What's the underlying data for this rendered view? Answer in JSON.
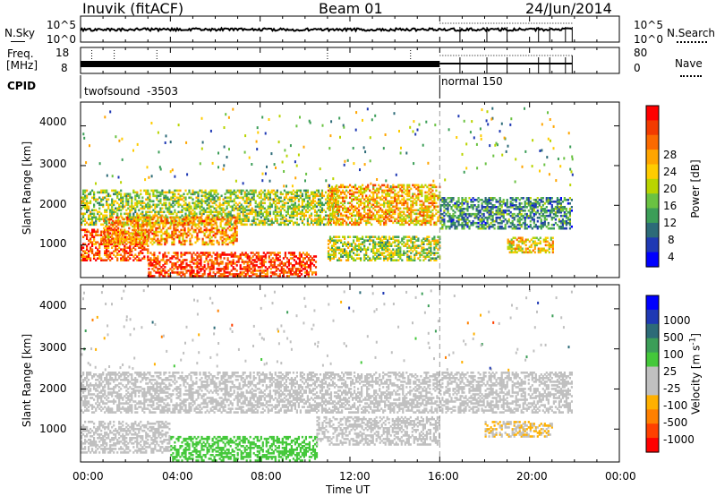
{
  "header": {
    "station": "Inuvik (fitACF)",
    "beam": "Beam 01",
    "date": "24/Jun/2014"
  },
  "noise_panel": {
    "left_label": "N.Sky",
    "left_ticks": [
      "10^5",
      "10^0"
    ],
    "right_ticks": [
      "10^5",
      "10^0"
    ],
    "right_label": "N.Search",
    "right_line": "dotted"
  },
  "freq_panel": {
    "left_label_1": "Freq.",
    "left_label_2": "[MHz]",
    "left_ticks": [
      "18",
      "8"
    ],
    "right_ticks": [
      "80",
      "0"
    ],
    "right_label": "Nave",
    "right_line": "dotted"
  },
  "cpid_panel": {
    "label": "CPID",
    "modes": [
      {
        "name": "twofsound",
        "id": "-3503"
      },
      {
        "name": "normal",
        "id": "150"
      }
    ]
  },
  "power_panel": {
    "ylabel": "Slant Range [km]",
    "yticks": [
      "4000",
      "3000",
      "2000",
      "1000"
    ],
    "colorbar_label": "Power [dB]",
    "colorbar_ticks": [
      "28",
      "24",
      "20",
      "16",
      "12",
      "8",
      "4"
    ],
    "colors": [
      "#ff0000",
      "#f23b00",
      "#fb6a00",
      "#ffa500",
      "#ffcc00",
      "#b9d400",
      "#6ac242",
      "#3c9e58",
      "#2d6b78",
      "#1f39b4",
      "#0000ff"
    ]
  },
  "velocity_panel": {
    "ylabel": "Slant Range [km]",
    "yticks": [
      "4000",
      "3000",
      "2000",
      "1000"
    ],
    "colorbar_label": "Velocity [m s",
    "colorbar_label_sup": "-1",
    "colorbar_label_end": "]",
    "colorbar_ticks": [
      "1000",
      "500",
      "100",
      "25",
      "-25",
      "-100",
      "-500",
      "-1000"
    ],
    "colors": [
      "#0000ff",
      "#1f39b4",
      "#2d6b78",
      "#3c9e58",
      "#44c83a",
      "#c0c0c0",
      "#c0c0c0",
      "#ffb000",
      "#ff8000",
      "#ff4000",
      "#ff0000"
    ]
  },
  "xaxis": {
    "label": "Time UT",
    "ticks": [
      "00:00",
      "04:00",
      "08:00",
      "12:00",
      "16:00",
      "20:00",
      "00:00"
    ]
  },
  "chart_data": {
    "type": "heatmap",
    "title": "Inuvik (fitACF)  Beam 01  24/Jun/2014",
    "xlabel": "Time UT",
    "xlim_hours": [
      0,
      24
    ],
    "ylabel": "Slant Range [km]",
    "ylim_km": [
      180,
      4600
    ],
    "mode_change_hour": 16.0,
    "data_end_hour": 21.9,
    "power_range_db": [
      0,
      30
    ],
    "velocity_range_ms": [
      -1000,
      1000
    ],
    "power_regions": [
      {
        "t0": 0.0,
        "t1": 11.5,
        "r0": 1500,
        "r1": 2400,
        "power_db": 14
      },
      {
        "t0": 0.0,
        "t1": 3.0,
        "r0": 600,
        "r1": 1400,
        "power_db": 26
      },
      {
        "t0": 3.0,
        "t1": 10.5,
        "r0": 200,
        "r1": 800,
        "power_db": 27
      },
      {
        "t0": 1.0,
        "t1": 7.0,
        "r0": 1000,
        "r1": 1700,
        "power_db": 22
      },
      {
        "t0": 11.0,
        "t1": 16.0,
        "r0": 1500,
        "r1": 2500,
        "power_db": 20
      },
      {
        "t0": 11.0,
        "t1": 16.0,
        "r0": 600,
        "r1": 1200,
        "power_db": 14
      },
      {
        "t0": 16.0,
        "t1": 21.9,
        "r0": 1400,
        "r1": 2200,
        "power_db": 8
      },
      {
        "t0": 19.0,
        "t1": 21.0,
        "r0": 800,
        "r1": 1200,
        "power_db": 18
      }
    ],
    "velocity_regions": [
      {
        "t0": 0.0,
        "t1": 21.9,
        "r0": 1400,
        "r1": 2400,
        "velocity_ms": 0
      },
      {
        "t0": 0.0,
        "t1": 4.0,
        "r0": 400,
        "r1": 1200,
        "velocity_ms": -150
      },
      {
        "t0": 4.0,
        "t1": 10.5,
        "r0": 200,
        "r1": 800,
        "velocity_ms": 200
      },
      {
        "t0": 10.5,
        "t1": 16.0,
        "r0": 600,
        "r1": 1300,
        "velocity_ms": -120
      },
      {
        "t0": 18.0,
        "t1": 21.0,
        "r0": 800,
        "r1": 1200,
        "velocity_ms": -300
      }
    ]
  }
}
